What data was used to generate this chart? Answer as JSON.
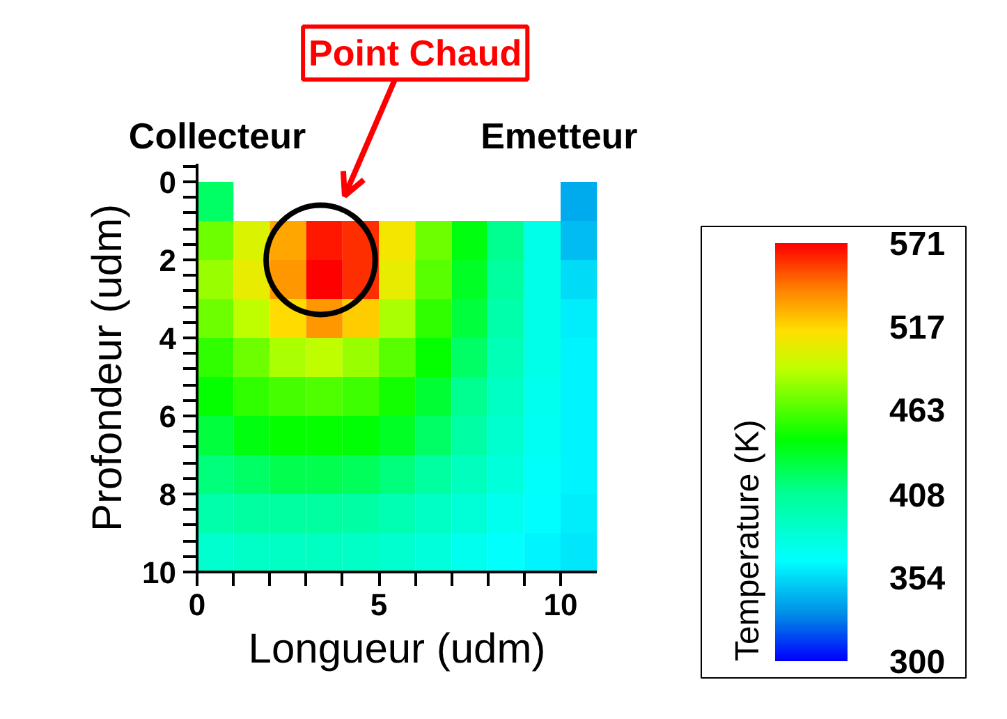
{
  "chart_data": {
    "type": "heatmap",
    "xlabel": "Longueur (udm)",
    "ylabel": "Profondeur (udm)",
    "clabel": "Temperature (K)",
    "x": [
      0.5,
      1.5,
      2.5,
      3.5,
      4.5,
      5.5,
      6.5,
      7.5,
      8.5,
      9.5,
      10.5
    ],
    "y": [
      0.5,
      1.5,
      2.5,
      3.5,
      4.5,
      5.5,
      6.5,
      7.5,
      8.5,
      9.5
    ],
    "xlim": [
      0,
      11
    ],
    "ylim": [
      10,
      -0.45
    ],
    "xticks": [
      0,
      {
        "value": 1,
        "label": null
      },
      {
        "value": 2,
        "label": null
      },
      {
        "value": 3,
        "label": null
      },
      {
        "value": 4,
        "label": null
      },
      5,
      {
        "value": 6,
        "label": null
      },
      {
        "value": 7,
        "label": null
      },
      {
        "value": 8,
        "label": null
      },
      {
        "value": 9,
        "label": null
      },
      10
    ],
    "yticks": [
      {
        "value": -0.4,
        "label": null
      },
      0,
      {
        "value": 0.4,
        "label": null
      },
      {
        "value": 0.8,
        "label": null
      },
      {
        "value": 1.2,
        "label": null
      },
      {
        "value": 1.6,
        "label": null
      },
      2,
      {
        "value": 2.4,
        "label": null
      },
      {
        "value": 2.8,
        "label": null
      },
      {
        "value": 3.2,
        "label": null
      },
      {
        "value": 3.6,
        "label": null
      },
      4,
      {
        "value": 4.4,
        "label": null
      },
      {
        "value": 4.8,
        "label": null
      },
      {
        "value": 5.2,
        "label": null
      },
      {
        "value": 5.6,
        "label": null
      },
      6,
      {
        "value": 6.4,
        "label": null
      },
      {
        "value": 6.8,
        "label": null
      },
      {
        "value": 7.2,
        "label": null
      },
      {
        "value": 7.6,
        "label": null
      },
      8,
      {
        "value": 8.4,
        "label": null
      },
      {
        "value": 8.8,
        "label": null
      },
      {
        "value": 9.2,
        "label": null
      },
      {
        "value": 9.6,
        "label": null
      },
      10
    ],
    "clim": [
      300,
      571
    ],
    "cticks": [
      300,
      354,
      408,
      463,
      517,
      571
    ],
    "cells": [
      [
        420,
        null,
        null,
        null,
        null,
        null,
        null,
        null,
        null,
        null,
        340
      ],
      [
        470,
        500,
        530,
        565,
        560,
        510,
        470,
        440,
        410,
        375,
        345
      ],
      [
        480,
        505,
        535,
        571,
        560,
        505,
        465,
        435,
        405,
        375,
        355
      ],
      [
        470,
        490,
        515,
        535,
        520,
        485,
        455,
        430,
        400,
        375,
        360
      ],
      [
        455,
        470,
        485,
        490,
        480,
        465,
        445,
        420,
        395,
        375,
        362
      ],
      [
        445,
        455,
        460,
        462,
        458,
        448,
        432,
        410,
        390,
        372,
        362
      ],
      [
        430,
        440,
        445,
        445,
        442,
        435,
        420,
        402,
        385,
        370,
        362
      ],
      [
        415,
        420,
        425,
        425,
        422,
        415,
        405,
        392,
        380,
        368,
        362
      ],
      [
        400,
        405,
        405,
        405,
        402,
        398,
        390,
        382,
        372,
        365,
        360
      ],
      [
        385,
        388,
        390,
        390,
        388,
        385,
        380,
        372,
        366,
        362,
        358
      ]
    ],
    "annotations": [
      "Collecteur",
      "Emetteur",
      "Point Chaud"
    ],
    "grid": false
  }
}
